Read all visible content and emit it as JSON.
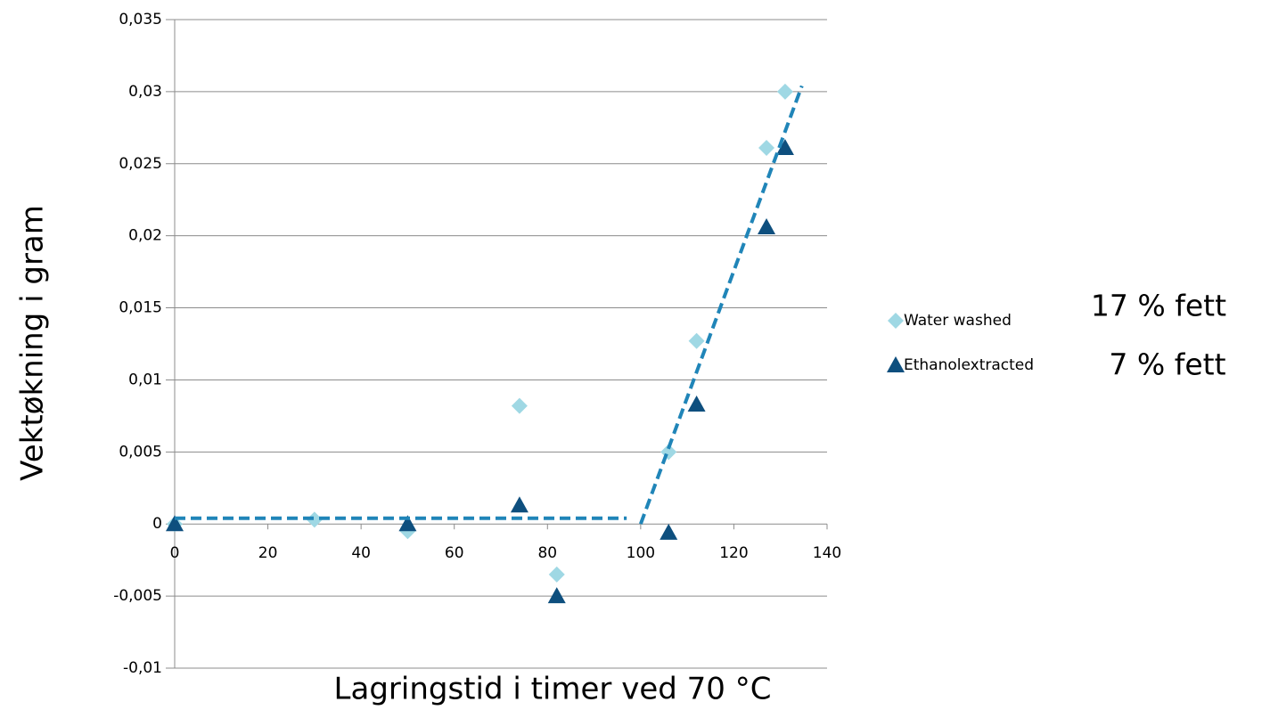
{
  "chart_data": {
    "type": "scatter",
    "y_label": "Vektøkning i gram",
    "x_label": "Lagringstid i timer ved 70 °C",
    "xlim": [
      0,
      140
    ],
    "xticks": [
      0,
      20,
      40,
      60,
      80,
      100,
      120,
      140
    ],
    "ylim": [
      -0.01,
      0.035
    ],
    "yticks": [
      {
        "value": -0.01,
        "label": "-0,01"
      },
      {
        "value": -0.005,
        "label": "-0,005"
      },
      0,
      {
        "value": 0.005,
        "label": "0,005"
      },
      {
        "value": 0.01,
        "label": "0,01"
      },
      {
        "value": 0.015,
        "label": "0,015"
      },
      {
        "value": 0.02,
        "label": "0,02"
      },
      {
        "value": 0.025,
        "label": "0,025"
      },
      {
        "value": 0.03,
        "label": "0,03"
      },
      {
        "value": 0.035,
        "label": "0,035"
      }
    ],
    "grid": true,
    "series": [
      {
        "name": "Water washed",
        "color": "#9fd8e4",
        "marker": "diamond",
        "x": [
          0,
          30,
          50,
          74,
          82,
          106,
          112,
          127,
          131
        ],
        "values": [
          0,
          0.0003,
          -0.0005,
          0.0082,
          -0.0035,
          0.005,
          0.0127,
          0.0261,
          0.03
        ]
      },
      {
        "name": "Ethanolextracted",
        "color": "#0e4f7e",
        "marker": "triangle",
        "x": [
          0,
          50,
          74,
          82,
          106,
          112,
          127,
          131
        ],
        "values": [
          0,
          0,
          0.0013,
          -0.005,
          -0.0006,
          0.0083,
          0.0206,
          0.0261
        ]
      }
    ],
    "trendlines": [
      {
        "color": "#2085b8",
        "x": [
          0,
          97
        ],
        "values": [
          0.0004,
          0.0004
        ]
      },
      {
        "color": "#2085b8",
        "x": [
          100,
          134.6
        ],
        "values": [
          0,
          0.0304
        ]
      }
    ],
    "annotations": [
      "17 % fett",
      "7 % fett"
    ]
  }
}
